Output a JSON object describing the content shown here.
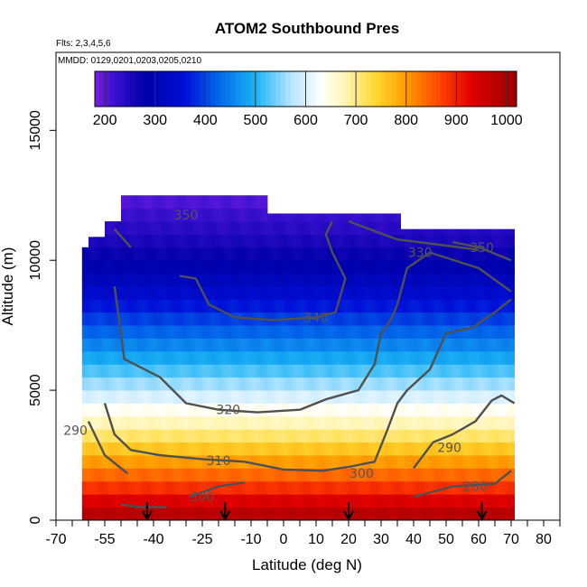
{
  "chart_data": {
    "type": "heatmap",
    "title": "ATOM2 Southbound Pres",
    "subtitle_flights": "Flts: 2,3,4,5,6",
    "subtitle_dates": "MMDD: 0129,0201,0203,0205,0210",
    "xlabel": "Latitude (deg N)",
    "ylabel": "Altitude (m)",
    "xlim": [
      -70,
      85
    ],
    "ylim": [
      0,
      18000
    ],
    "x_ticks": [
      -70,
      -55,
      -40,
      -25,
      -10,
      0,
      10,
      20,
      30,
      40,
      50,
      60,
      70,
      80
    ],
    "x_tick_labels": [
      "-70",
      "-55",
      "-40",
      "-25",
      "-10",
      "0",
      "10",
      "20",
      "30",
      "40",
      "50",
      "60",
      "70",
      "80"
    ],
    "x_minor_ticks": [
      -65,
      -60,
      -50,
      -45,
      -35,
      -30,
      -20,
      -15,
      -5,
      5,
      15,
      25,
      35,
      45,
      55,
      65,
      75,
      85
    ],
    "y_ticks": [
      0,
      5000,
      10000,
      15000
    ],
    "y_tick_labels": [
      "0",
      "5000",
      "10000",
      "15000"
    ],
    "colorbar": {
      "range": [
        180,
        1020
      ],
      "ticks": [
        200,
        300,
        400,
        500,
        600,
        700,
        800,
        900,
        1000
      ],
      "tick_labels": [
        "200",
        "300",
        "400",
        "500",
        "600",
        "700",
        "800",
        "900",
        "1000"
      ],
      "stops": [
        {
          "v": 180,
          "c": "#7a1ee0"
        },
        {
          "v": 220,
          "c": "#3a10d0"
        },
        {
          "v": 280,
          "c": "#0000a8"
        },
        {
          "v": 360,
          "c": "#0010d8"
        },
        {
          "v": 420,
          "c": "#0060e8"
        },
        {
          "v": 500,
          "c": "#1ab4f4"
        },
        {
          "v": 570,
          "c": "#b4e4ff"
        },
        {
          "v": 630,
          "c": "#ffffff"
        },
        {
          "v": 680,
          "c": "#fff4b0"
        },
        {
          "v": 740,
          "c": "#ffd830"
        },
        {
          "v": 800,
          "c": "#ff9c00"
        },
        {
          "v": 870,
          "c": "#ff4000"
        },
        {
          "v": 930,
          "c": "#e00000"
        },
        {
          "v": 1020,
          "c": "#980000"
        }
      ]
    },
    "pressure_profile": [
      {
        "alt": 0,
        "p": 1000
      },
      {
        "alt": 700,
        "p": 940
      },
      {
        "alt": 1500,
        "p": 860
      },
      {
        "alt": 2500,
        "p": 780
      },
      {
        "alt": 3500,
        "p": 690
      },
      {
        "alt": 4500,
        "p": 620
      },
      {
        "alt": 5500,
        "p": 540
      },
      {
        "alt": 6500,
        "p": 470
      },
      {
        "alt": 7500,
        "p": 410
      },
      {
        "alt": 8500,
        "p": 350
      },
      {
        "alt": 9500,
        "p": 300
      },
      {
        "alt": 10500,
        "p": 260
      },
      {
        "alt": 11500,
        "p": 230
      },
      {
        "alt": 12500,
        "p": 200
      }
    ],
    "data_top": [
      {
        "lat": -62,
        "alt": 10500
      },
      {
        "lat": -60,
        "alt": 10900
      },
      {
        "lat": -55,
        "alt": 11500
      },
      {
        "lat": -50,
        "alt": 12500
      },
      {
        "lat": -10,
        "alt": 12500
      },
      {
        "lat": -5,
        "alt": 11800
      },
      {
        "lat": 35,
        "alt": 11800
      },
      {
        "lat": 36,
        "alt": 11200
      },
      {
        "lat": 71,
        "alt": 11200
      }
    ],
    "data_lat_range": [
      -62,
      71
    ],
    "profile_markers_lat": [
      -42,
      -18,
      20,
      61
    ],
    "contours": [
      {
        "label": "350",
        "label_lat": -30,
        "label_alt": 11750,
        "points": [
          [
            -52,
            11200
          ],
          [
            -47,
            10500
          ]
        ]
      },
      {
        "label": "330",
        "label_lat": 42,
        "label_alt": 10300,
        "points": [
          [
            20,
            11500
          ],
          [
            35,
            10800
          ],
          [
            48,
            10600
          ],
          [
            60,
            10400
          ]
        ]
      },
      {
        "label": "350",
        "label_lat": 61,
        "label_alt": 10500,
        "points": [
          [
            52,
            10700
          ],
          [
            60,
            10500
          ],
          [
            70,
            10000
          ]
        ]
      },
      {
        "label": "340",
        "label_lat": 10,
        "label_alt": 7800,
        "points": [
          [
            -32,
            9400
          ],
          [
            -27,
            9300
          ],
          [
            -23,
            8300
          ],
          [
            -15,
            7800
          ],
          [
            -3,
            7700
          ],
          [
            10,
            7800
          ],
          [
            16,
            8000
          ],
          [
            19,
            9300
          ],
          [
            15,
            10300
          ],
          [
            13,
            11000
          ],
          [
            15,
            11500
          ]
        ]
      },
      {
        "label": "320",
        "label_lat": -17,
        "label_alt": 4250,
        "points": [
          [
            -52,
            9000
          ],
          [
            -49,
            6200
          ],
          [
            -38,
            5500
          ],
          [
            -30,
            4500
          ],
          [
            -20,
            4250
          ],
          [
            -8,
            4150
          ],
          [
            5,
            4250
          ],
          [
            13,
            4650
          ],
          [
            23,
            5000
          ],
          [
            28,
            6000
          ],
          [
            30,
            7200
          ],
          [
            33,
            7700
          ],
          [
            35,
            8300
          ],
          [
            38,
            9700
          ],
          [
            45,
            10300
          ],
          [
            60,
            9700
          ],
          [
            70,
            8800
          ]
        ]
      },
      {
        "label": "310",
        "label_lat": -20,
        "label_alt": 2300,
        "points": [
          [
            -55,
            4500
          ],
          [
            -52,
            3300
          ],
          [
            -47,
            2700
          ],
          [
            -38,
            2500
          ],
          [
            -25,
            2350
          ],
          [
            -12,
            2250
          ],
          [
            0,
            1950
          ],
          [
            12,
            1900
          ],
          [
            20,
            2050
          ],
          [
            28,
            2250
          ],
          [
            32,
            3500
          ],
          [
            35,
            4500
          ],
          [
            38,
            5000
          ],
          [
            45,
            5800
          ],
          [
            50,
            7200
          ],
          [
            58,
            7400
          ],
          [
            65,
            8000
          ],
          [
            70,
            8500
          ]
        ]
      },
      {
        "label": "300",
        "label_lat": 24,
        "label_alt": 1800,
        "points": [
          [
            -50,
            600
          ],
          [
            -44,
            500
          ],
          [
            -36,
            500
          ]
        ]
      },
      {
        "label": "300",
        "label_lat": -25,
        "label_alt": 900,
        "points": [
          [
            -29,
            900
          ],
          [
            -20,
            1300
          ],
          [
            -12,
            1450
          ]
        ]
      },
      {
        "label": "290",
        "label_lat": -64,
        "label_alt": 3450,
        "points": [
          [
            -60,
            3800
          ],
          [
            -55,
            2500
          ],
          [
            -48,
            1800
          ]
        ]
      },
      {
        "label": "290",
        "label_lat": 51,
        "label_alt": 2800,
        "points": [
          [
            40,
            2000
          ],
          [
            46,
            3000
          ],
          [
            52,
            3300
          ],
          [
            59,
            3800
          ],
          [
            64,
            4600
          ],
          [
            67,
            4800
          ],
          [
            71,
            4500
          ]
        ]
      },
      {
        "label": "280",
        "label_lat": 59,
        "label_alt": 1300,
        "points": [
          [
            40,
            900
          ],
          [
            52,
            1300
          ],
          [
            65,
            1400
          ],
          [
            70,
            1900
          ]
        ]
      }
    ]
  }
}
